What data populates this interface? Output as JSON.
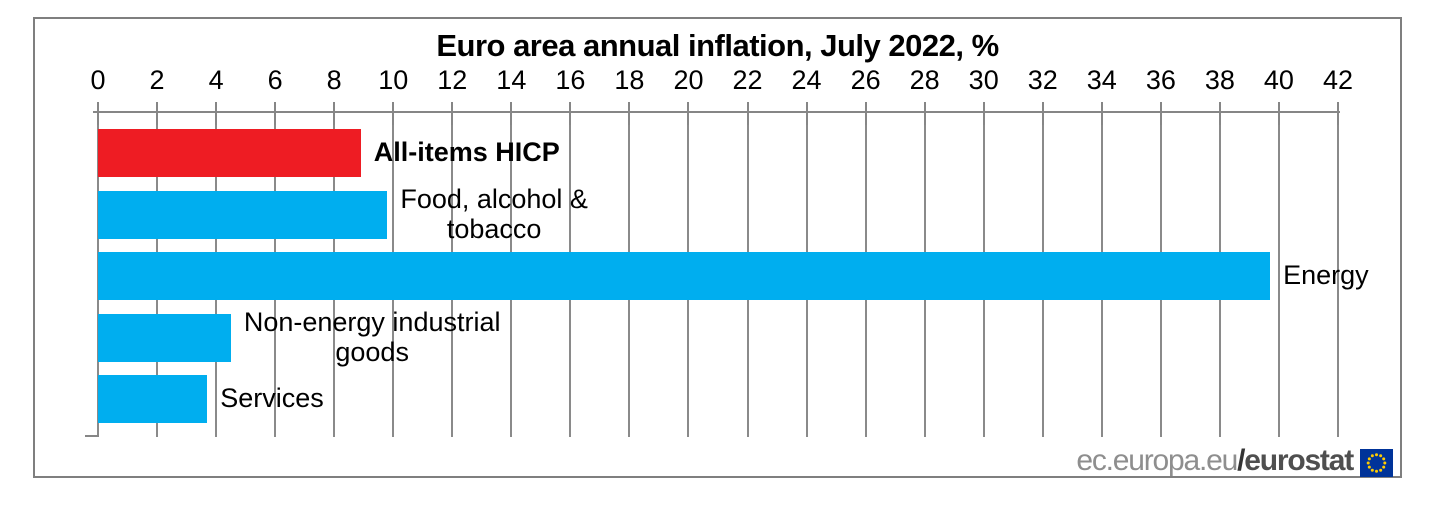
{
  "page": {
    "background_color": "#ffffff",
    "frame_border_color": "#7f7f7f"
  },
  "chart_data": {
    "type": "bar",
    "orientation": "horizontal",
    "title": "Euro area annual inflation, July 2022, %",
    "xlabel": "",
    "ylabel": "",
    "axis_position": "top",
    "xlim": [
      0,
      42
    ],
    "x_ticks": [
      0,
      2,
      4,
      6,
      8,
      10,
      12,
      14,
      16,
      18,
      20,
      22,
      24,
      26,
      28,
      30,
      32,
      34,
      36,
      38,
      40,
      42
    ],
    "grid": true,
    "legend": "none",
    "categories": [
      "All-items HICP",
      "Food, alcohol & tobacco",
      "Energy",
      "Non-energy industrial goods",
      "Services"
    ],
    "values": [
      8.9,
      9.8,
      39.7,
      4.5,
      3.7
    ],
    "items": [
      {
        "label_lines": [
          "All-items HICP"
        ],
        "value": 8.9,
        "color": "#ee1c23",
        "bold": true
      },
      {
        "label_lines": [
          "Food, alcohol &",
          "tobacco"
        ],
        "value": 9.8,
        "color": "#00aeef",
        "bold": false
      },
      {
        "label_lines": [
          "Energy"
        ],
        "value": 39.7,
        "color": "#00aeef",
        "bold": false
      },
      {
        "label_lines": [
          "Non-energy industrial",
          "goods"
        ],
        "value": 4.5,
        "color": "#00aeef",
        "bold": false
      },
      {
        "label_lines": [
          "Services"
        ],
        "value": 3.7,
        "color": "#00aeef",
        "bold": false
      }
    ],
    "colors": {
      "highlight_bar": "#ee1c23",
      "default_bar": "#00aeef",
      "gridline": "#8a8a8a",
      "text": "#000000"
    }
  },
  "footer": {
    "site_text": "ec.europa.eu",
    "separator": "/",
    "brand_text": "eurostat",
    "flag_icon": "eu-flag-icon",
    "flag_bg_color": "#003399",
    "flag_star_color": "#ffcc00"
  }
}
